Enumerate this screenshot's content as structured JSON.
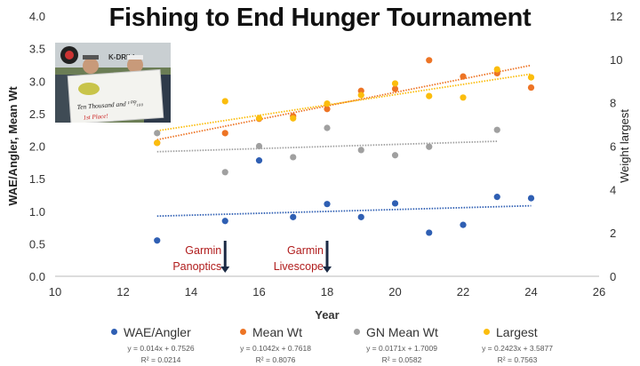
{
  "chart_data": {
    "type": "scatter",
    "title": "Fishing to End Hunger Tournament",
    "xlabel": "Year",
    "ylabel": "WAE/Angler, Mean Wt",
    "y2label": "Weight largest",
    "xlim": [
      10,
      26
    ],
    "ylim": [
      0,
      4.0
    ],
    "y2lim": [
      0,
      12
    ],
    "xticks": [
      "10",
      "12",
      "14",
      "16",
      "18",
      "20",
      "22",
      "24",
      "26"
    ],
    "yticks": [
      "0.0",
      "0.5",
      "1.0",
      "1.5",
      "2.0",
      "2.5",
      "3.0",
      "3.5",
      "4.0"
    ],
    "y2ticks": [
      "0",
      "2",
      "4",
      "6",
      "8",
      "10",
      "12"
    ],
    "grid": false,
    "legend_position": "bottom",
    "series": [
      {
        "name": "WAE/Angler",
        "color": "#2f5fb3",
        "axis": "left",
        "x": [
          13,
          15,
          16,
          17,
          18,
          19,
          20,
          21,
          22,
          23,
          24
        ],
        "y": [
          0.55,
          0.85,
          1.78,
          0.91,
          1.11,
          0.91,
          1.12,
          0.67,
          0.79,
          1.22,
          1.2
        ],
        "trend_equation": "y = 0.014x + 0.7526",
        "r2": "R² = 0.0214"
      },
      {
        "name": "Mean Wt",
        "color": "#ed7425",
        "axis": "left",
        "x": [
          13,
          15,
          16,
          17,
          18,
          19,
          20,
          21,
          22,
          23,
          24
        ],
        "y": [
          2.05,
          2.2,
          2.42,
          2.46,
          2.57,
          2.85,
          2.88,
          3.32,
          3.07,
          3.12,
          2.9
        ],
        "trend_equation": "y = 0.1042x + 0.7618",
        "r2": "R² = 0.8076"
      },
      {
        "name": "GN Mean Wt",
        "color": "#a0a0a0",
        "axis": "left",
        "x": [
          13,
          15,
          16,
          17,
          18,
          19,
          20,
          21,
          23
        ],
        "y": [
          2.2,
          1.6,
          2.0,
          1.83,
          2.28,
          1.94,
          1.86,
          1.99,
          2.25
        ],
        "trend_equation": "y = 0.0171x + 1.7009",
        "r2": "R² = 0.0582"
      },
      {
        "name": "Largest",
        "color": "#fbbd0d",
        "axis": "right",
        "x": [
          13,
          15,
          16,
          17,
          18,
          19,
          20,
          21,
          22,
          23,
          24
        ],
        "y": [
          6.15,
          8.07,
          7.29,
          7.28,
          7.96,
          8.35,
          8.89,
          8.31,
          8.24,
          9.54,
          9.17
        ],
        "trend_equation": "y = 0.2423x + 3.5877",
        "r2": "R² = 0.7563"
      }
    ],
    "annotations": [
      {
        "text_lines": [
          "Garmin",
          "Panoptics"
        ],
        "x": 15,
        "color": "#b01c1c"
      },
      {
        "text_lines": [
          "Garmin",
          "Livescope"
        ],
        "x": 18,
        "color": "#b01c1c"
      }
    ]
  },
  "photo": {
    "check_text": "Ten Thousand and ¹⁰⁰⁄₁₀₀",
    "place_text": "1st Place!",
    "banner_text": "K-DRILL"
  }
}
